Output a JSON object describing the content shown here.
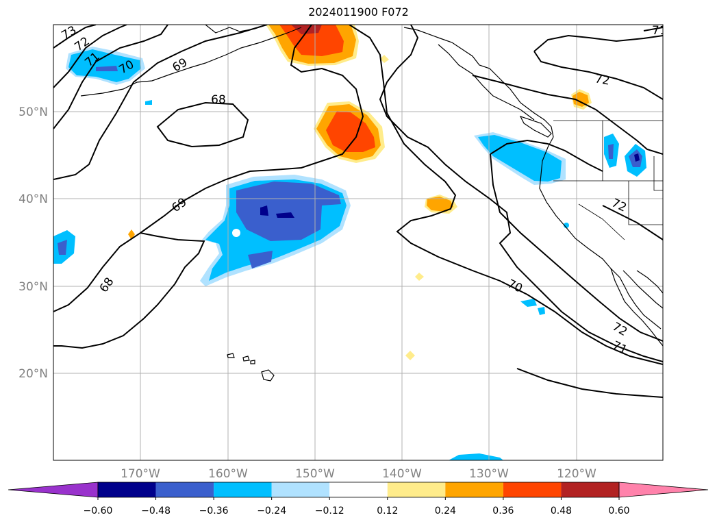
{
  "title": "2024011900 F072",
  "lat_labels": [
    "50°N",
    "40°N",
    "30°N",
    "20°N"
  ],
  "lon_labels": [
    "170°W",
    "160°W",
    "150°W",
    "140°W",
    "130°W",
    "120°W"
  ],
  "contour_labels": [
    "73",
    "72",
    "71",
    "70",
    "69",
    "68",
    "69",
    "68",
    "70",
    "72",
    "71",
    "72",
    "71"
  ],
  "colorbar": {
    "ticks": [
      "−0.60",
      "−0.48",
      "−0.36",
      "−0.24",
      "−0.12",
      "0.12",
      "0.24",
      "0.36",
      "0.48",
      "0.60"
    ],
    "colors": [
      "#9932cc",
      "#00008b",
      "#3a5fcd",
      "#00bfff",
      "#b0e2ff",
      "#ffffff",
      "#ffec8b",
      "#ffa500",
      "#ff4500",
      "#b22222",
      "#ff82ab"
    ]
  }
}
